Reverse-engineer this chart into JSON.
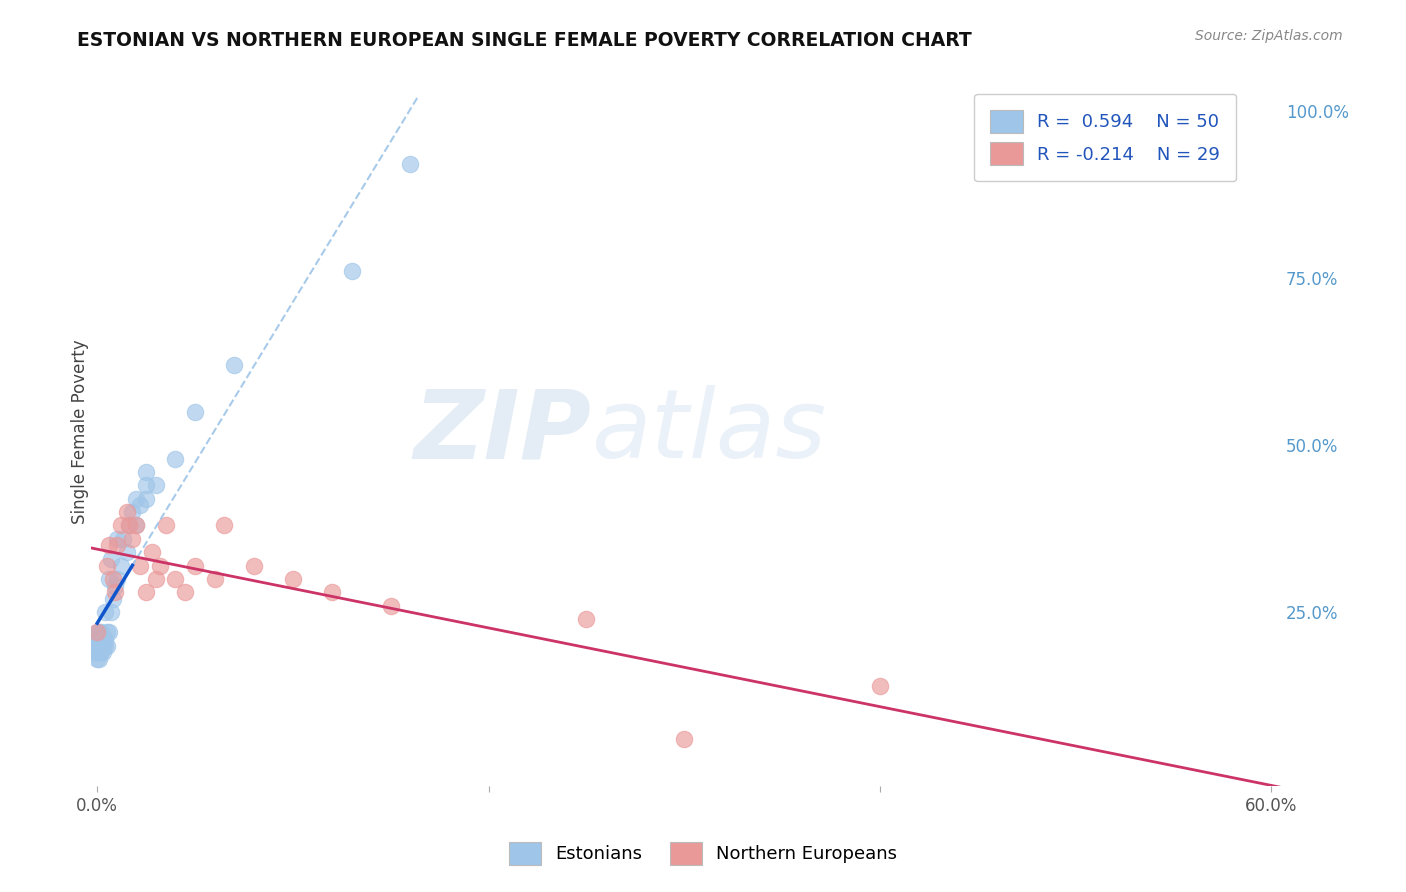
{
  "title": "ESTONIAN VS NORTHERN EUROPEAN SINGLE FEMALE POVERTY CORRELATION CHART",
  "source": "Source: ZipAtlas.com",
  "ylabel": "Single Female Poverty",
  "xlim": [
    -0.003,
    0.605
  ],
  "ylim": [
    -0.01,
    1.05
  ],
  "yticks_right": [
    0.25,
    0.5,
    0.75,
    1.0
  ],
  "yticklabels_right": [
    "25.0%",
    "50.0%",
    "75.0%",
    "100.0%"
  ],
  "watermark_zip": "ZIP",
  "watermark_atlas": "atlas",
  "color_estonian": "#9fc5e8",
  "color_northern": "#ea9999",
  "color_trend_estonian": "#1155cc",
  "color_trend_northern": "#cc3366",
  "color_trend_estonian_dash": "#9fc5e8",
  "background": "#ffffff",
  "grid_color": "#bbbbbb",
  "estonian_x": [
    0.0,
    0.0,
    0.0,
    0.0,
    0.0,
    0.0,
    0.0,
    0.0,
    0.001,
    0.001,
    0.001,
    0.001,
    0.001,
    0.002,
    0.002,
    0.002,
    0.002,
    0.003,
    0.003,
    0.003,
    0.004,
    0.004,
    0.004,
    0.005,
    0.005,
    0.006,
    0.006,
    0.007,
    0.007,
    0.008,
    0.009,
    0.01,
    0.01,
    0.012,
    0.013,
    0.015,
    0.016,
    0.018,
    0.02,
    0.02,
    0.022,
    0.025,
    0.025,
    0.03,
    0.04,
    0.05,
    0.07,
    0.13,
    0.16,
    0.025
  ],
  "estonian_y": [
    0.18,
    0.19,
    0.19,
    0.2,
    0.2,
    0.21,
    0.21,
    0.22,
    0.18,
    0.19,
    0.2,
    0.21,
    0.22,
    0.19,
    0.2,
    0.21,
    0.22,
    0.19,
    0.2,
    0.21,
    0.2,
    0.21,
    0.25,
    0.2,
    0.22,
    0.22,
    0.3,
    0.25,
    0.33,
    0.27,
    0.29,
    0.3,
    0.36,
    0.32,
    0.36,
    0.34,
    0.38,
    0.4,
    0.38,
    0.42,
    0.41,
    0.42,
    0.44,
    0.44,
    0.48,
    0.55,
    0.62,
    0.76,
    0.92,
    0.46
  ],
  "northern_x": [
    0.0,
    0.005,
    0.006,
    0.008,
    0.009,
    0.01,
    0.012,
    0.015,
    0.016,
    0.018,
    0.02,
    0.022,
    0.025,
    0.028,
    0.03,
    0.032,
    0.035,
    0.04,
    0.045,
    0.05,
    0.06,
    0.065,
    0.08,
    0.1,
    0.12,
    0.15,
    0.25,
    0.3,
    0.4
  ],
  "northern_y": [
    0.22,
    0.32,
    0.35,
    0.3,
    0.28,
    0.35,
    0.38,
    0.4,
    0.38,
    0.36,
    0.38,
    0.32,
    0.28,
    0.34,
    0.3,
    0.32,
    0.38,
    0.3,
    0.28,
    0.32,
    0.3,
    0.38,
    0.32,
    0.3,
    0.28,
    0.26,
    0.24,
    0.06,
    0.14
  ],
  "trend_estonian_x0": 0.0,
  "trend_estonian_x1": 0.018,
  "trend_estonian_dash_x0": 0.018,
  "trend_estonian_dash_x1": 0.022,
  "trend_northern_x0": -0.003,
  "trend_northern_x1": 0.605
}
